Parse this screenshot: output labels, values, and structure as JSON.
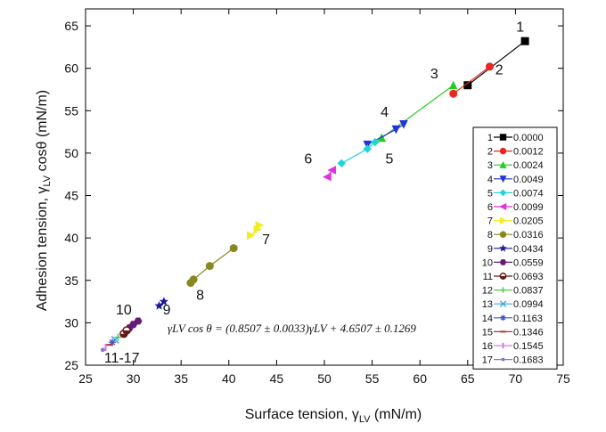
{
  "chart_data": {
    "type": "scatter",
    "title": "",
    "xlabel": "Surface tension, γLV (mN/m)",
    "ylabel": "Adhesion tension, γLV cosθ (mN/m)",
    "xlabel_main": "Surface tension, γ",
    "xlabel_sub": "LV",
    "xlabel_tail": " (mN/m)",
    "ylabel_main": "Adhesion tension, γ",
    "ylabel_sub": "LV",
    "ylabel_tail": " cosθ (mN/m)",
    "xlim": [
      25,
      75
    ],
    "ylim": [
      25,
      67
    ],
    "xticks": [
      25,
      30,
      35,
      40,
      45,
      50,
      55,
      60,
      65,
      70,
      75
    ],
    "yticks": [
      25,
      30,
      35,
      40,
      45,
      50,
      55,
      60,
      65
    ],
    "grid": false,
    "legend_position": "right",
    "equation": "γLV cos θ = (0.8507 ± 0.0033)γLV + 4.6507 ± 0.1269",
    "annotations": [
      {
        "text": "1",
        "x": 70.5,
        "y": 64.3
      },
      {
        "text": "2",
        "x": 68.3,
        "y": 59.3
      },
      {
        "text": "3",
        "x": 61.5,
        "y": 58.8
      },
      {
        "text": "4",
        "x": 56.3,
        "y": 54.3
      },
      {
        "text": "5",
        "x": 56.8,
        "y": 48.8
      },
      {
        "text": "6",
        "x": 48.3,
        "y": 48.8
      },
      {
        "text": "7",
        "x": 43.9,
        "y": 39.3
      },
      {
        "text": "8",
        "x": 37.0,
        "y": 32.7
      },
      {
        "text": "9",
        "x": 33.5,
        "y": 31.0
      },
      {
        "text": "10",
        "x": 29.0,
        "y": 31.0
      },
      {
        "text": "11-17",
        "x": 28.8,
        "y": 25.3
      }
    ],
    "series": [
      {
        "name": "0.0000",
        "label": "1",
        "color": "#000000",
        "marker": "square",
        "x": [
          65.0,
          71.0
        ],
        "y": [
          58.0,
          63.2
        ]
      },
      {
        "name": "0.0012",
        "label": "2",
        "color": "#e8281e",
        "marker": "circle",
        "x": [
          63.5,
          67.3
        ],
        "y": [
          57.0,
          60.2
        ]
      },
      {
        "name": "0.0024",
        "label": "3",
        "color": "#22cc22",
        "marker": "triangle-up",
        "x": [
          56.0,
          63.5
        ],
        "y": [
          51.8,
          58.0
        ]
      },
      {
        "name": "0.0049",
        "label": "4",
        "color": "#2233dd",
        "marker": "triangle-down",
        "x": [
          54.5,
          57.5,
          58.3
        ],
        "y": [
          51.0,
          52.8,
          53.4
        ]
      },
      {
        "name": "0.0074",
        "label": "5",
        "color": "#22d4d4",
        "marker": "diamond",
        "x": [
          51.8,
          54.5,
          55.3
        ],
        "y": [
          48.8,
          50.5,
          51.3
        ]
      },
      {
        "name": "0.0099",
        "label": "6",
        "color": "#e030e0",
        "marker": "triangle-left",
        "x": [
          50.3,
          50.8
        ],
        "y": [
          47.2,
          48.0
        ]
      },
      {
        "name": "0.0205",
        "label": "7",
        "color": "#eeee22",
        "marker": "triangle-right",
        "x": [
          42.3,
          43.0,
          43.2
        ],
        "y": [
          40.3,
          41.0,
          41.5
        ]
      },
      {
        "name": "0.0316",
        "label": "8",
        "color": "#888822",
        "marker": "circle",
        "x": [
          36.0,
          36.3,
          38.0,
          40.5
        ],
        "y": [
          34.7,
          35.1,
          36.7,
          38.8
        ]
      },
      {
        "name": "0.0434",
        "label": "9",
        "color": "#1a1a99",
        "marker": "star",
        "x": [
          32.7,
          33.2
        ],
        "y": [
          32.0,
          32.5
        ]
      },
      {
        "name": "0.0559",
        "label": "10",
        "color": "#661a77",
        "marker": "hexagon",
        "x": [
          29.6,
          30.0,
          30.5
        ],
        "y": [
          29.4,
          29.8,
          30.2
        ]
      },
      {
        "name": "0.0693",
        "label": "11",
        "color": "#661a1a",
        "marker": "circle-half",
        "x": [
          29.0,
          29.3
        ],
        "y": [
          28.7,
          29.1
        ]
      },
      {
        "name": "0.0837",
        "label": "12",
        "color": "#55cc55",
        "marker": "plus",
        "x": [
          28.4
        ],
        "y": [
          28.3
        ]
      },
      {
        "name": "0.0994",
        "label": "13",
        "color": "#44aacc",
        "marker": "cross",
        "x": [
          28.1
        ],
        "y": [
          28.0
        ]
      },
      {
        "name": "0.1163",
        "label": "14",
        "color": "#4455cc",
        "marker": "asterisk",
        "x": [
          27.8
        ],
        "y": [
          27.7
        ]
      },
      {
        "name": "0.1346",
        "label": "15",
        "color": "#aa3333",
        "marker": "hline",
        "x": [
          27.5
        ],
        "y": [
          27.4
        ]
      },
      {
        "name": "0.1545",
        "label": "16",
        "color": "#dd77dd",
        "marker": "vline",
        "x": [
          27.1
        ],
        "y": [
          27.1
        ]
      },
      {
        "name": "0.1683",
        "label": "17",
        "color": "#8877cc",
        "marker": "dot-line",
        "x": [
          26.8
        ],
        "y": [
          26.8
        ]
      }
    ]
  }
}
